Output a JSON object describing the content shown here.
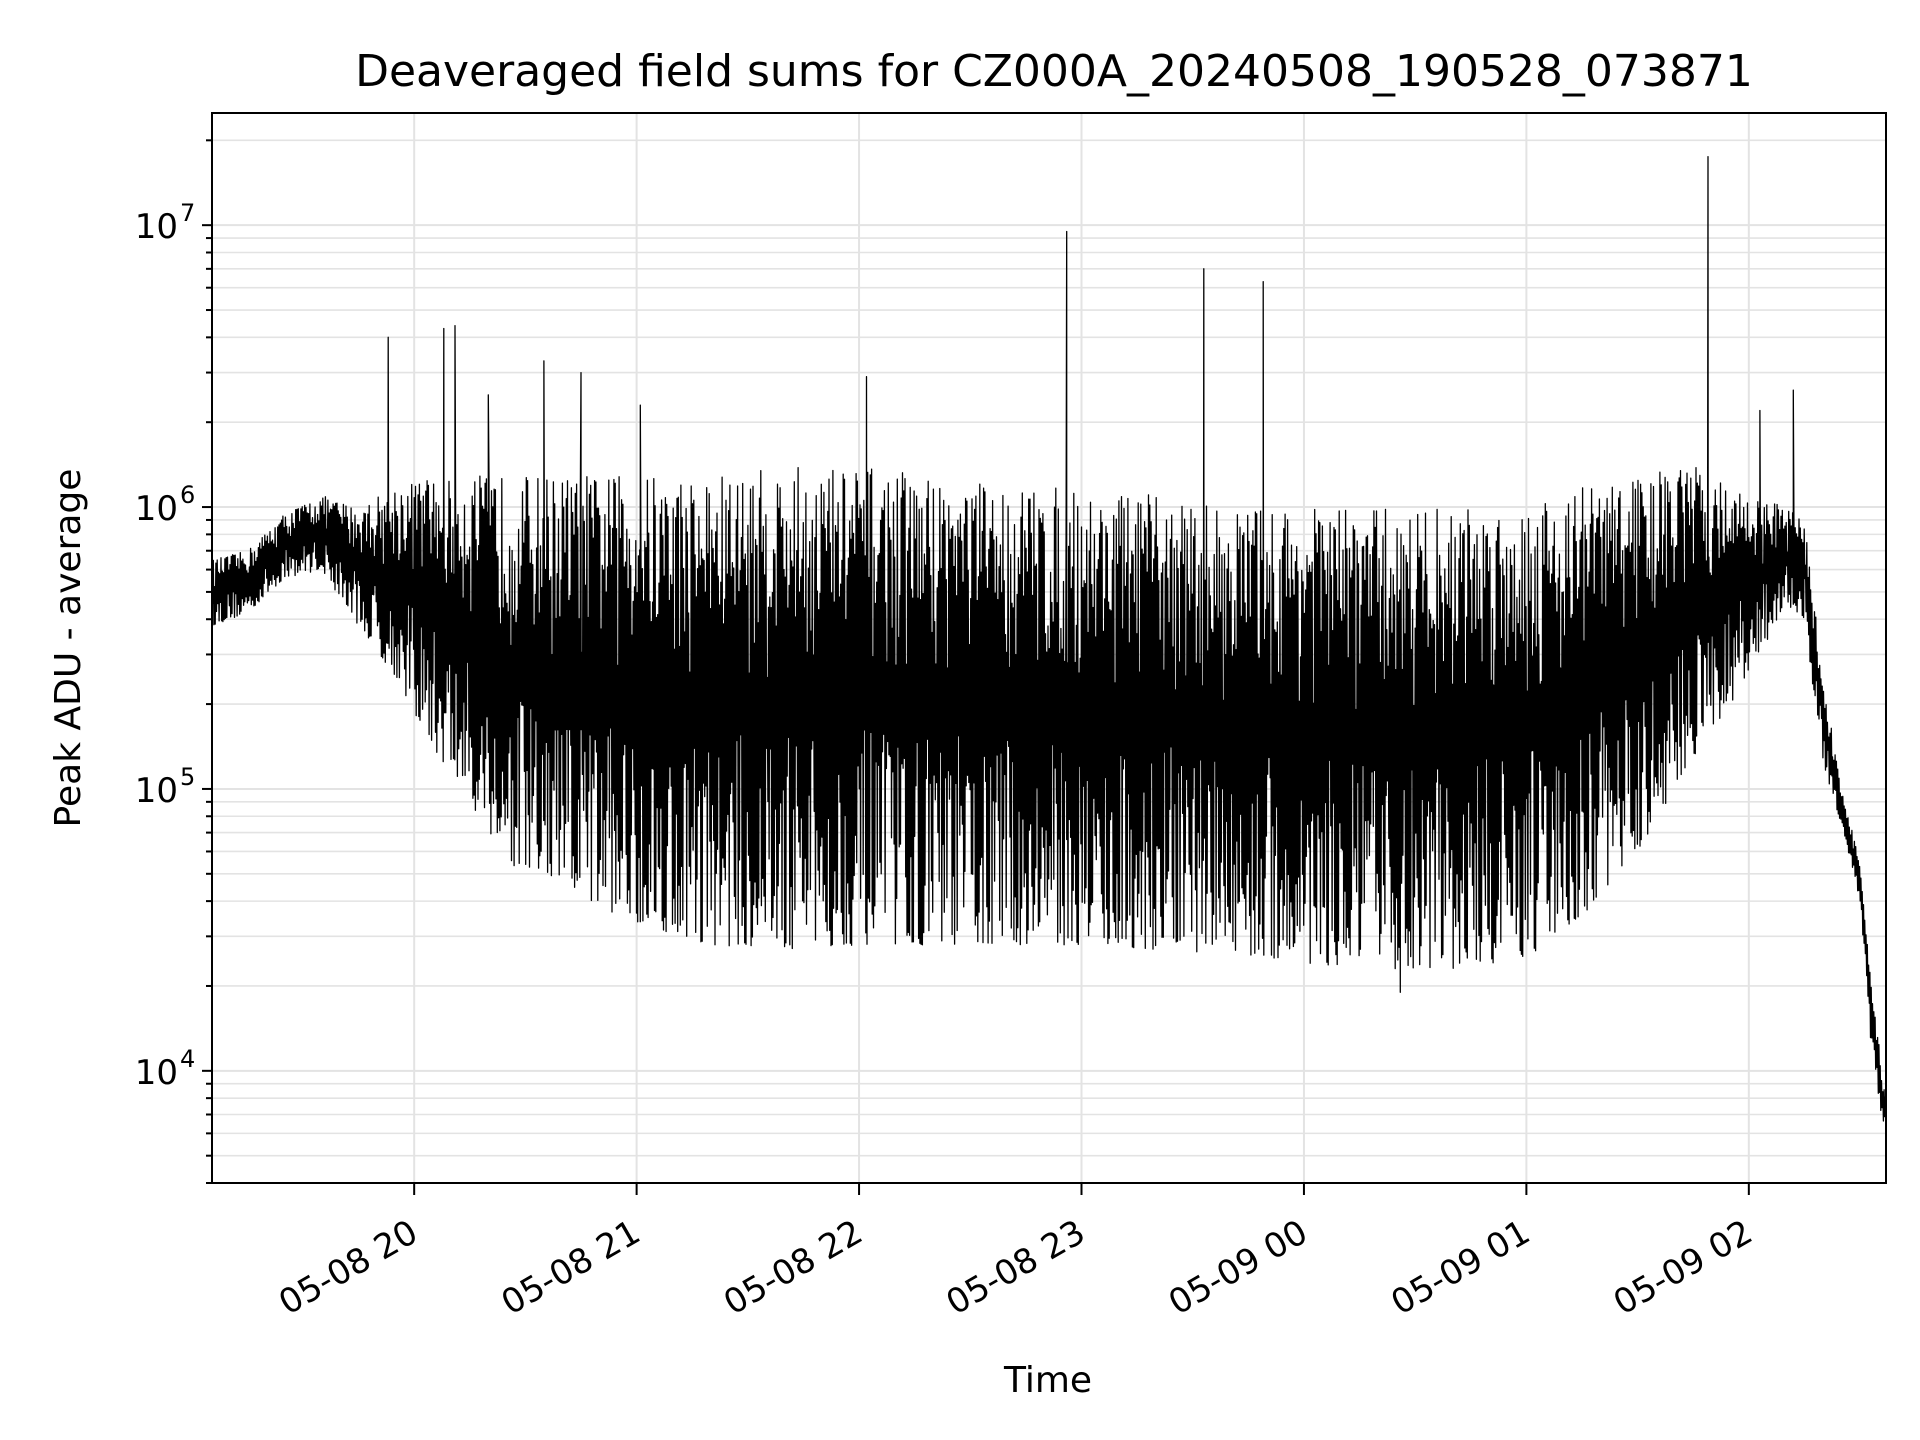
{
  "chart_data": {
    "type": "line",
    "title": "Deaveraged field sums for CZ000A_20240508_190528_073871",
    "xlabel": "Time",
    "ylabel": "Peak ADU - average",
    "y_scale": "log",
    "ylim": [
      4000,
      25000000
    ],
    "xlim": [
      "2024-05-08 19:05:28",
      "2024-05-09 02:37:00"
    ],
    "grid": true,
    "line_color": "#000000",
    "grid_color": "#e3e3e3",
    "x_ticks": [
      {
        "value": "2024-05-08 20:00",
        "label": "05-08 20"
      },
      {
        "value": "2024-05-08 21:00",
        "label": "05-08 21"
      },
      {
        "value": "2024-05-08 22:00",
        "label": "05-08 22"
      },
      {
        "value": "2024-05-08 23:00",
        "label": "05-08 23"
      },
      {
        "value": "2024-05-09 00:00",
        "label": "05-09 00"
      },
      {
        "value": "2024-05-09 01:00",
        "label": "05-09 01"
      },
      {
        "value": "2024-05-09 02:00",
        "label": "05-09 02"
      }
    ],
    "y_ticks": [
      {
        "value": 10000,
        "base": "10",
        "exp": "4"
      },
      {
        "value": 100000,
        "base": "10",
        "exp": "5"
      },
      {
        "value": 1000000,
        "base": "10",
        "exp": "6"
      },
      {
        "value": 10000000,
        "base": "10",
        "exp": "7"
      }
    ],
    "series": [
      {
        "envelope": [
          {
            "x": "2024-05-08 19:05:28",
            "low": 380000,
            "high": 650000
          },
          {
            "x": "2024-05-08 19:15",
            "low": 420000,
            "high": 700000
          },
          {
            "x": "2024-05-08 19:25",
            "low": 560000,
            "high": 950000
          },
          {
            "x": "2024-05-08 19:35",
            "low": 600000,
            "high": 1100000
          },
          {
            "x": "2024-05-08 19:45",
            "low": 380000,
            "high": 1000000
          },
          {
            "x": "2024-05-08 19:55",
            "low": 250000,
            "high": 1200000
          },
          {
            "x": "2024-05-08 20:05",
            "low": 140000,
            "high": 1300000
          },
          {
            "x": "2024-05-08 20:15",
            "low": 90000,
            "high": 1300000
          },
          {
            "x": "2024-05-08 20:25",
            "low": 55000,
            "high": 1300000
          },
          {
            "x": "2024-05-08 20:35",
            "low": 45000,
            "high": 1300000
          },
          {
            "x": "2024-05-08 20:50",
            "low": 38000,
            "high": 1300000
          },
          {
            "x": "2024-05-08 21:05",
            "low": 32000,
            "high": 1300000
          },
          {
            "x": "2024-05-08 21:20",
            "low": 28000,
            "high": 1300000
          },
          {
            "x": "2024-05-08 21:40",
            "low": 27000,
            "high": 1400000
          },
          {
            "x": "2024-05-08 22:00",
            "low": 28000,
            "high": 1400000
          },
          {
            "x": "2024-05-08 22:20",
            "low": 28000,
            "high": 1300000
          },
          {
            "x": "2024-05-08 22:40",
            "low": 28000,
            "high": 1200000
          },
          {
            "x": "2024-05-08 23:00",
            "low": 28000,
            "high": 1150000
          },
          {
            "x": "2024-05-08 23:20",
            "low": 27000,
            "high": 1100000
          },
          {
            "x": "2024-05-08 23:40",
            "low": 26000,
            "high": 1000000
          },
          {
            "x": "2024-05-09 00:00",
            "low": 24000,
            "high": 1000000
          },
          {
            "x": "2024-05-09 00:20",
            "low": 23000,
            "high": 1000000
          },
          {
            "x": "2024-05-09 00:40",
            "low": 23000,
            "high": 1000000
          },
          {
            "x": "2024-05-09 01:00",
            "low": 25000,
            "high": 1050000
          },
          {
            "x": "2024-05-09 01:15",
            "low": 35000,
            "high": 1200000
          },
          {
            "x": "2024-05-09 01:30",
            "low": 60000,
            "high": 1300000
          },
          {
            "x": "2024-05-09 01:45",
            "low": 130000,
            "high": 1400000
          },
          {
            "x": "2024-05-09 02:00",
            "low": 250000,
            "high": 1100000
          },
          {
            "x": "2024-05-09 02:10",
            "low": 450000,
            "high": 1000000
          },
          {
            "x": "2024-05-09 02:15",
            "low": 400000,
            "high": 900000
          },
          {
            "x": "2024-05-09 02:20",
            "low": 120000,
            "high": 250000
          },
          {
            "x": "2024-05-09 02:25",
            "low": 75000,
            "high": 100000
          },
          {
            "x": "2024-05-09 02:30",
            "low": 40000,
            "high": 55000
          },
          {
            "x": "2024-05-09 02:33",
            "low": 12000,
            "high": 20000
          },
          {
            "x": "2024-05-09 02:37",
            "low": 5500,
            "high": 8000
          }
        ],
        "spikes": [
          {
            "x": "2024-05-08 19:53",
            "y": 4000000
          },
          {
            "x": "2024-05-08 20:08",
            "y": 4300000
          },
          {
            "x": "2024-05-08 20:11",
            "y": 4400000
          },
          {
            "x": "2024-05-08 20:20",
            "y": 2500000
          },
          {
            "x": "2024-05-08 20:35",
            "y": 3300000
          },
          {
            "x": "2024-05-08 20:45",
            "y": 3000000
          },
          {
            "x": "2024-05-08 21:01",
            "y": 2300000
          },
          {
            "x": "2024-05-08 22:02",
            "y": 2900000
          },
          {
            "x": "2024-05-08 22:56",
            "y": 9500000
          },
          {
            "x": "2024-05-08 23:33",
            "y": 7000000
          },
          {
            "x": "2024-05-08 23:49",
            "y": 6300000
          },
          {
            "x": "2024-05-09 00:26",
            "y": 19000
          },
          {
            "x": "2024-05-09 01:49",
            "y": 17500000
          },
          {
            "x": "2024-05-09 02:03",
            "y": 2200000
          },
          {
            "x": "2024-05-09 02:12",
            "y": 2600000
          }
        ]
      }
    ]
  }
}
